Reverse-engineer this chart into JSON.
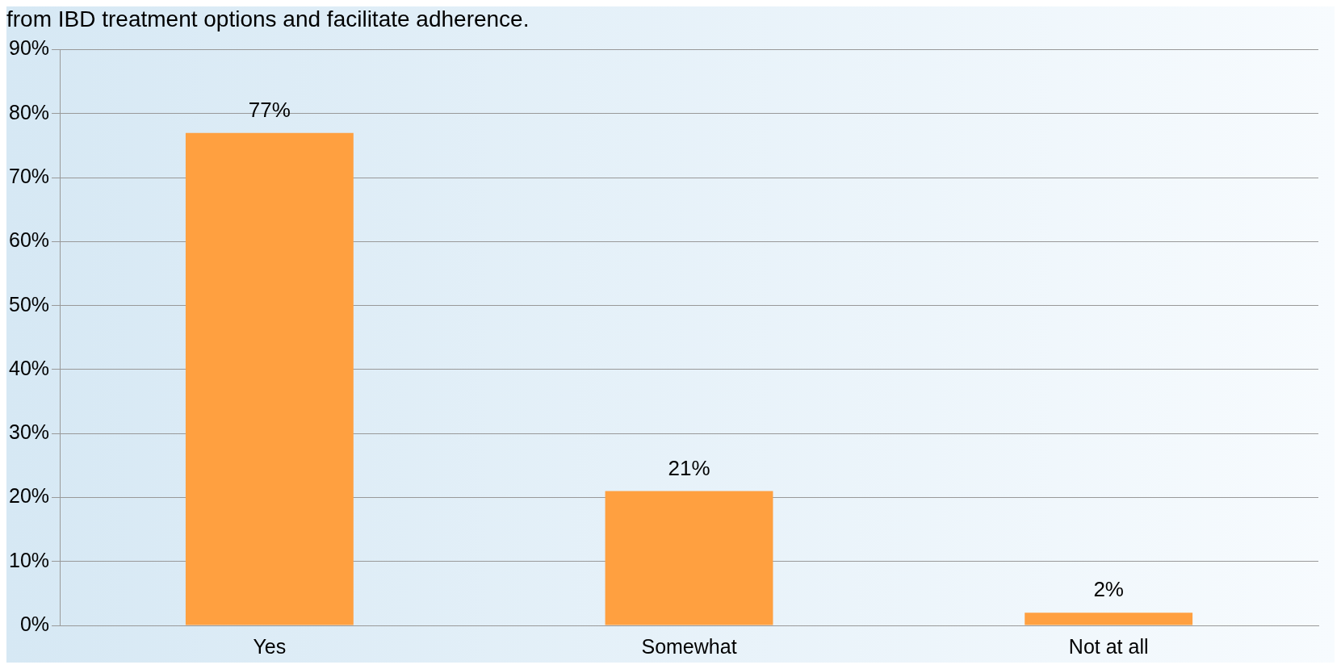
{
  "chart_data": {
    "type": "bar",
    "title": "from IBD treatment options and facilitate adherence.",
    "categories": [
      "Yes",
      "Somewhat",
      "Not at all"
    ],
    "series": [
      {
        "color": "#ffa040",
        "values": [
          77,
          21,
          2
        ],
        "value_labels": [
          "77%",
          "21%",
          "2%"
        ]
      }
    ],
    "ylim": [
      0,
      90
    ],
    "yticks": [
      {
        "value": 0,
        "label": "0%"
      },
      {
        "value": 10,
        "label": "10%"
      },
      {
        "value": 20,
        "label": "20%"
      },
      {
        "value": 30,
        "label": "30%"
      },
      {
        "value": 40,
        "label": "40%"
      },
      {
        "value": 50,
        "label": "50%"
      },
      {
        "value": 60,
        "label": "60%"
      },
      {
        "value": 70,
        "label": "70%"
      },
      {
        "value": 80,
        "label": "80%"
      },
      {
        "value": 90,
        "label": "90%"
      }
    ],
    "grid": "y",
    "legend": false
  }
}
